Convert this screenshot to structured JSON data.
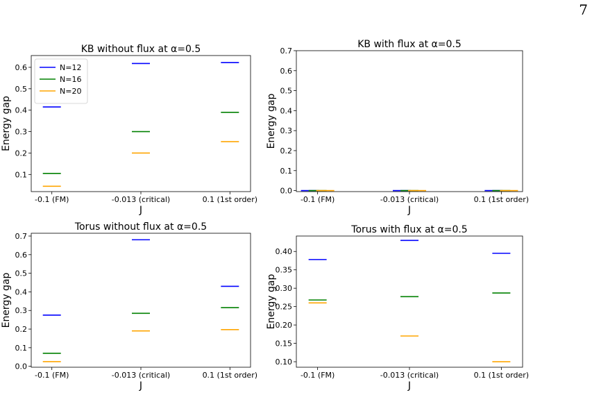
{
  "page": {
    "number": "7"
  },
  "chart_data": [
    {
      "type": "scatter",
      "marker": "horizontal-line",
      "title": "KB without flux at α=0.5",
      "xlabel": "J",
      "ylabel": "Energy gap",
      "categories": [
        "-0.1 (FM)",
        "-0.013 (critical)",
        "0.1 (1st order)"
      ],
      "yticks": [
        "0.1",
        "0.2",
        "0.3",
        "0.4",
        "0.5",
        "0.6"
      ],
      "ylim": [
        0.02,
        0.655
      ],
      "legend": {
        "position": "top-left",
        "entries": [
          "N=12",
          "N=16",
          "N=20"
        ]
      },
      "series": [
        {
          "name": "N=12",
          "color": "#0000ff",
          "values": [
            0.415,
            0.618,
            0.622
          ]
        },
        {
          "name": "N=16",
          "color": "#008000",
          "values": [
            0.105,
            0.3,
            0.39
          ]
        },
        {
          "name": "N=20",
          "color": "#ffa500",
          "values": [
            0.045,
            0.2,
            0.253
          ]
        }
      ]
    },
    {
      "type": "scatter",
      "marker": "horizontal-line",
      "title": "KB with flux at α=0.5",
      "xlabel": "J",
      "ylabel": "Energy gap",
      "categories": [
        "-0.1 (FM)",
        "-0.013 (critical)",
        "0.1 (1st order)"
      ],
      "yticks": [
        "0.0",
        "0.1",
        "0.2",
        "0.3",
        "0.4",
        "0.5",
        "0.6",
        "0.7"
      ],
      "ylim": [
        -0.005,
        0.7
      ],
      "series": [
        {
          "name": "N=12",
          "color": "#0000ff",
          "values": [
            0.0,
            0.0,
            0.0
          ]
        },
        {
          "name": "N=16",
          "color": "#008000",
          "values": [
            0.0,
            0.0,
            0.0
          ]
        },
        {
          "name": "N=20",
          "color": "#ffa500",
          "values": [
            0.0,
            0.0,
            0.0
          ]
        }
      ]
    },
    {
      "type": "scatter",
      "marker": "horizontal-line",
      "title": "Torus without flux at α=0.5",
      "xlabel": "J",
      "ylabel": "Energy gap",
      "categories": [
        "-0.1 (FM)",
        "-0.013 (critical)",
        "0.1 (1st order)"
      ],
      "yticks": [
        "0.0",
        "0.1",
        "0.2",
        "0.3",
        "0.4",
        "0.5",
        "0.6",
        "0.7"
      ],
      "ylim": [
        -0.005,
        0.715
      ],
      "series": [
        {
          "name": "N=12",
          "color": "#0000ff",
          "values": [
            0.275,
            0.68,
            0.43
          ]
        },
        {
          "name": "N=16",
          "color": "#008000",
          "values": [
            0.07,
            0.285,
            0.315
          ]
        },
        {
          "name": "N=20",
          "color": "#ffa500",
          "values": [
            0.025,
            0.19,
            0.197
          ]
        }
      ]
    },
    {
      "type": "scatter",
      "marker": "horizontal-line",
      "title": "Torus with flux at α=0.5",
      "xlabel": "J",
      "ylabel": "Energy gap",
      "categories": [
        "-0.1 (FM)",
        "-0.013 (critical)",
        "0.1 (1st order)"
      ],
      "yticks": [
        "0.10",
        "0.15",
        "0.20",
        "0.25",
        "0.30",
        "0.35",
        "0.40"
      ],
      "ylim": [
        0.085,
        0.442
      ],
      "series": [
        {
          "name": "N=12",
          "color": "#0000ff",
          "values": [
            0.378,
            0.43,
            0.395
          ]
        },
        {
          "name": "N=16",
          "color": "#008000",
          "values": [
            0.268,
            0.277,
            0.287
          ]
        },
        {
          "name": "N=20",
          "color": "#ffa500",
          "values": [
            0.26,
            0.17,
            0.1
          ]
        }
      ]
    }
  ]
}
